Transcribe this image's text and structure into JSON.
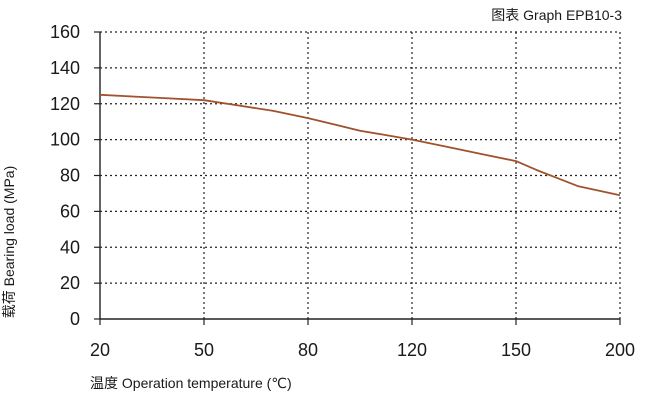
{
  "chart_data": {
    "type": "line",
    "title": "图表 Graph EPB10-3",
    "xlabel": "温度 Operation temperature (℃)",
    "ylabel": "载荷 Bearing load (MPa)",
    "xticks": [
      20,
      50,
      80,
      120,
      150,
      200
    ],
    "yticks": [
      0,
      20,
      40,
      60,
      80,
      100,
      120,
      140,
      160
    ],
    "xlim": [
      20,
      200
    ],
    "ylim": [
      0,
      160
    ],
    "grid": true,
    "x_scale": "custom (tick labels evenly spaced)",
    "series": [
      {
        "color": "#a0522d",
        "x": [
          20,
          30,
          40,
          50,
          60,
          70,
          80,
          90,
          100,
          110,
          120,
          130,
          140,
          150,
          160,
          170,
          180,
          190,
          200
        ],
        "y": [
          125,
          124,
          123,
          122,
          119,
          116,
          112,
          108.5,
          105,
          102.5,
          100,
          96,
          92,
          88,
          83,
          78.5,
          74,
          71.5,
          69
        ]
      }
    ]
  }
}
